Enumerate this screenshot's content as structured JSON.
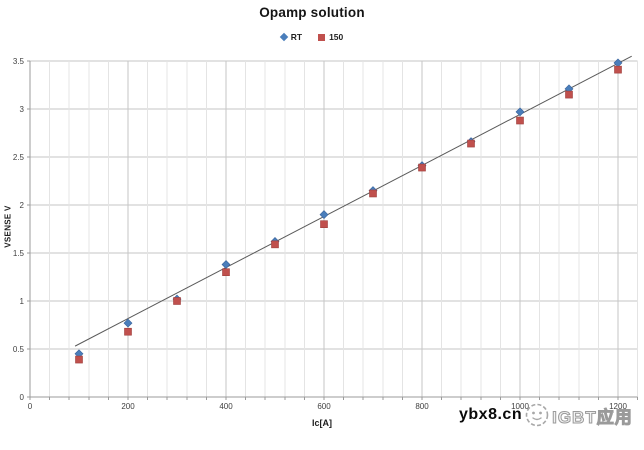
{
  "chart_data": {
    "type": "scatter",
    "title": "Opamp solution",
    "xlabel": "Ic[A]",
    "ylabel": "VSENSE V",
    "xlim": [
      0,
      1240
    ],
    "ylim": [
      0,
      3.5
    ],
    "x_major_step": 200,
    "x_minor_step": 40,
    "y_step": 0.5,
    "x_tick_labels": [
      "0",
      "200",
      "400",
      "600",
      "800",
      "1000",
      "1200"
    ],
    "x_tick_values": [
      0,
      200,
      400,
      600,
      800,
      1000,
      1200
    ],
    "y_tick_labels": [
      "0",
      "0.5",
      "1",
      "1.5",
      "2",
      "2.5",
      "3",
      "3.5"
    ],
    "y_tick_values": [
      0,
      0.5,
      1,
      1.5,
      2,
      2.5,
      3,
      3.5
    ],
    "grid": true,
    "legend_position": "top",
    "x": [
      100,
      200,
      300,
      400,
      500,
      600,
      700,
      800,
      900,
      1000,
      1100,
      1200
    ],
    "series": [
      {
        "name": "RT",
        "marker": "diamond",
        "color": "#4A7EBB",
        "edge_color": "#38629B",
        "values": [
          0.45,
          0.77,
          1.02,
          1.38,
          1.62,
          1.9,
          2.15,
          2.41,
          2.66,
          2.97,
          3.21,
          3.48
        ]
      },
      {
        "name": "150",
        "marker": "square",
        "color": "#C0504D",
        "edge_color": "#9E3F3C",
        "values": [
          0.39,
          0.68,
          1.0,
          1.3,
          1.59,
          1.8,
          2.12,
          2.39,
          2.64,
          2.88,
          3.15,
          3.41
        ]
      }
    ],
    "trendline": {
      "x1": 92,
      "y1": 0.53,
      "x2": 1228,
      "y2": 3.55,
      "color": "#5a5a5a"
    },
    "colors": {
      "grid_minor": "#e4e4e4",
      "grid_major": "#c6c6c6",
      "axis": "#9b9b9b",
      "tick_text": "#3f3f3f"
    }
  },
  "watermark": {
    "site": "ybx8.cn",
    "brand": "IGBT应用"
  }
}
